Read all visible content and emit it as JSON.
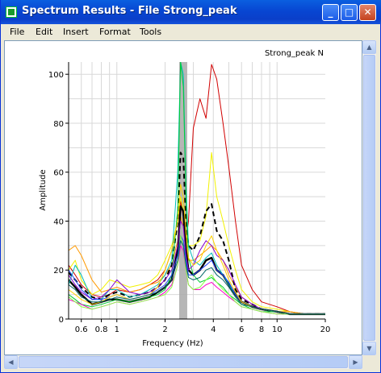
{
  "window": {
    "title": "Spectrum Results - File Strong_peak",
    "minimize_glyph": "_",
    "maximize_glyph": "□",
    "close_glyph": "✕"
  },
  "menu": {
    "items": [
      "File",
      "Edit",
      "Insert",
      "Format",
      "Tools"
    ]
  },
  "scrollbars": {
    "up_glyph": "▲",
    "down_glyph": "▼",
    "left_glyph": "◀",
    "right_glyph": "▶"
  },
  "chart_data": {
    "type": "line",
    "title": "Strong_peak N",
    "xlabel": "Frequency (Hz)",
    "ylabel": "Amplitude",
    "xscale": "log",
    "xlim": [
      0.5,
      20
    ],
    "ylim": [
      0,
      105
    ],
    "grid": true,
    "x_tick_labels": [
      "0.6",
      "0.8",
      "1",
      "2",
      "4",
      "6",
      "8",
      "10",
      "20"
    ],
    "x_tick_values": [
      0.6,
      0.8,
      1,
      2,
      4,
      6,
      8,
      10,
      20
    ],
    "y_ticks": [
      0,
      20,
      40,
      60,
      80,
      100
    ],
    "shaded_band": {
      "x_from": 2.45,
      "x_to": 2.75,
      "color": "#a9a9a9"
    },
    "x": [
      0.5,
      0.55,
      0.6,
      0.7,
      0.8,
      0.9,
      1.0,
      1.2,
      1.4,
      1.6,
      1.8,
      2.0,
      2.2,
      2.4,
      2.5,
      2.6,
      2.7,
      2.8,
      3.0,
      3.3,
      3.6,
      3.9,
      4.2,
      4.6,
      5.0,
      5.5,
      6.0,
      7.0,
      8.0,
      10.0,
      12.0,
      15.0,
      20.0
    ],
    "series": [
      {
        "color": "#d10000",
        "values": [
          22,
          18,
          14,
          10,
          9,
          10,
          12,
          11,
          12,
          14,
          16,
          20,
          28,
          40,
          48,
          42,
          32,
          40,
          78,
          90,
          82,
          104,
          98,
          80,
          62,
          40,
          22,
          12,
          7,
          5,
          3,
          2,
          2
        ]
      },
      {
        "color": "#f2f200",
        "values": [
          20,
          24,
          16,
          10,
          12,
          16,
          15,
          13,
          14,
          15,
          18,
          24,
          30,
          40,
          50,
          44,
          35,
          30,
          30,
          32,
          42,
          68,
          50,
          40,
          30,
          20,
          12,
          7,
          5,
          4,
          3,
          2,
          2
        ]
      },
      {
        "color": "#ff9900",
        "values": [
          28,
          30,
          26,
          16,
          11,
          12,
          13,
          11,
          12,
          14,
          15,
          18,
          22,
          32,
          42,
          38,
          30,
          24,
          24,
          26,
          28,
          30,
          28,
          24,
          18,
          13,
          9,
          6,
          4,
          3,
          3,
          2,
          2
        ]
      },
      {
        "color": "#000000",
        "dash": true,
        "width": 2,
        "values": [
          19,
          16,
          13,
          9,
          8,
          10,
          11,
          9,
          10,
          11,
          13,
          16,
          22,
          40,
          68,
          66,
          40,
          30,
          28,
          34,
          44,
          47,
          36,
          32,
          24,
          12,
          8,
          6,
          4,
          3,
          2,
          2,
          2
        ]
      },
      {
        "color": "#000000",
        "width": 2.4,
        "values": [
          16,
          13,
          10,
          6,
          7,
          8,
          8,
          7,
          8,
          9,
          11,
          13,
          16,
          28,
          46,
          44,
          28,
          20,
          18,
          20,
          24,
          25,
          20,
          18,
          14,
          10,
          7,
          5,
          4,
          3,
          2,
          2,
          2
        ]
      },
      {
        "color": "#00bcbc",
        "values": [
          14,
          22,
          18,
          8,
          8,
          12,
          12,
          9,
          10,
          12,
          14,
          18,
          24,
          60,
          105,
          100,
          55,
          30,
          24,
          22,
          25,
          27,
          22,
          18,
          14,
          10,
          7,
          5,
          4,
          3,
          2,
          2,
          2
        ]
      },
      {
        "color": "#00cc33",
        "values": [
          10,
          8,
          6,
          5,
          6,
          7,
          8,
          7,
          8,
          9,
          10,
          12,
          18,
          45,
          105,
          95,
          50,
          25,
          18,
          15,
          16,
          17,
          15,
          13,
          10,
          8,
          6,
          4,
          3,
          3,
          2,
          2,
          2
        ]
      },
      {
        "color": "#8800cc",
        "values": [
          18,
          14,
          11,
          8,
          9,
          12,
          16,
          11,
          10,
          11,
          13,
          16,
          20,
          30,
          40,
          38,
          26,
          20,
          22,
          28,
          32,
          30,
          26,
          24,
          20,
          14,
          9,
          6,
          4,
          3,
          2,
          2,
          2
        ]
      },
      {
        "color": "#2244ff",
        "values": [
          20,
          16,
          12,
          8,
          8,
          9,
          10,
          8,
          9,
          10,
          12,
          14,
          18,
          26,
          34,
          32,
          24,
          18,
          18,
          20,
          22,
          24,
          20,
          18,
          15,
          10,
          7,
          5,
          4,
          3,
          2,
          2,
          2
        ]
      },
      {
        "color": "#ff00cc",
        "values": [
          8,
          7,
          6,
          4,
          5,
          6,
          7,
          6,
          7,
          8,
          9,
          11,
          14,
          22,
          30,
          28,
          20,
          14,
          12,
          12,
          14,
          15,
          13,
          11,
          9,
          7,
          5,
          4,
          3,
          2,
          2,
          2,
          2
        ]
      },
      {
        "color": "#ffd200",
        "values": [
          12,
          10,
          8,
          6,
          7,
          9,
          10,
          8,
          9,
          10,
          13,
          20,
          28,
          40,
          55,
          50,
          35,
          25,
          22,
          24,
          30,
          34,
          28,
          22,
          16,
          11,
          7,
          5,
          4,
          3,
          2,
          2,
          2
        ]
      },
      {
        "color": "#88ff44",
        "values": [
          9,
          7,
          5,
          4,
          5,
          6,
          7,
          6,
          7,
          8,
          9,
          10,
          13,
          22,
          34,
          30,
          20,
          14,
          12,
          13,
          16,
          18,
          15,
          12,
          10,
          7,
          5,
          4,
          3,
          2,
          2,
          2,
          2
        ]
      },
      {
        "color": "#006666",
        "values": [
          14,
          12,
          9,
          7,
          7,
          8,
          9,
          8,
          9,
          10,
          11,
          13,
          16,
          24,
          32,
          30,
          22,
          17,
          16,
          17,
          20,
          21,
          18,
          16,
          13,
          9,
          6,
          5,
          4,
          3,
          2,
          2,
          2
        ]
      }
    ]
  }
}
